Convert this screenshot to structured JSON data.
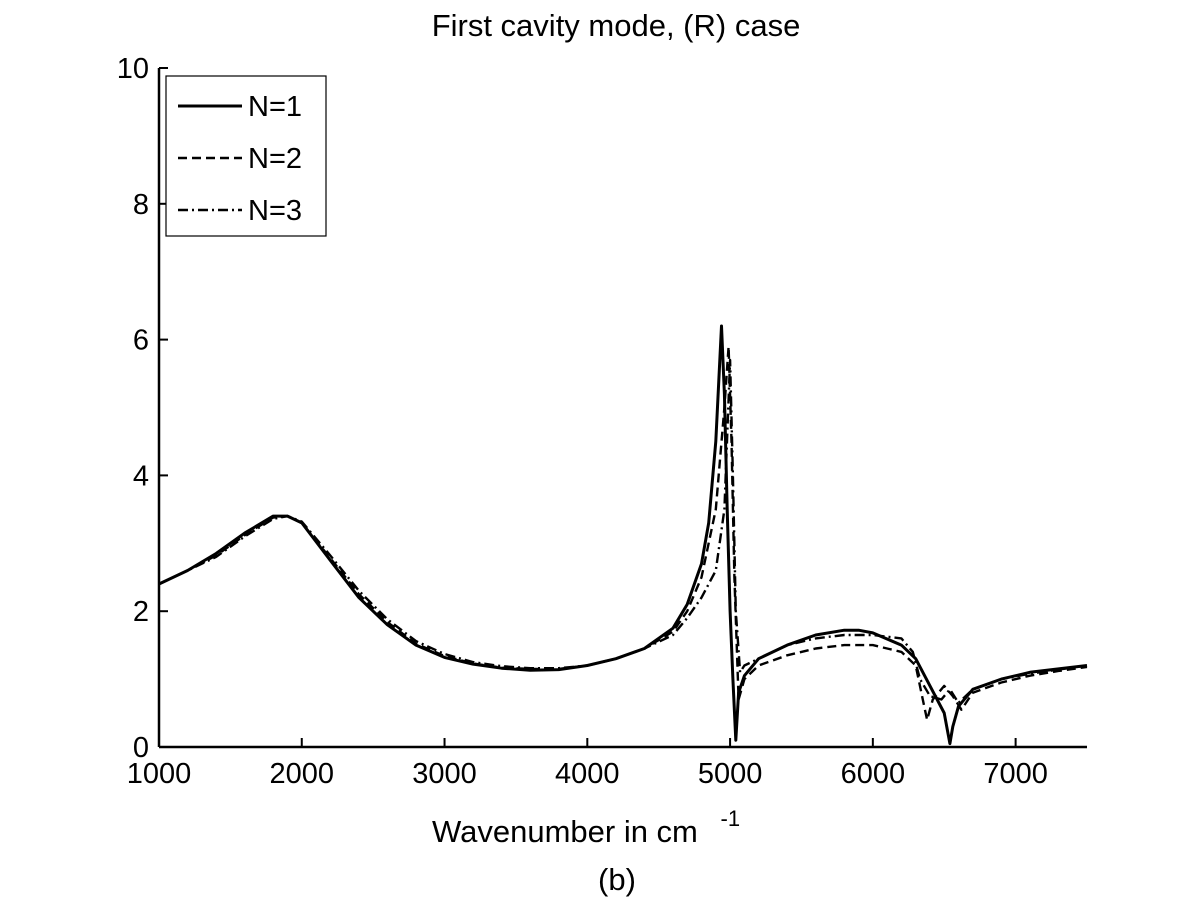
{
  "chart_data": {
    "type": "line",
    "title": "First cavity mode, (R) case",
    "xlabel": "Wavenumber in cm",
    "xlabel_superscript": "-1",
    "caption": "(b)",
    "xlim": [
      1000,
      7500
    ],
    "ylim": [
      0,
      10
    ],
    "xticks": [
      "1000",
      "2000",
      "3000",
      "4000",
      "5000",
      "6000",
      "7000"
    ],
    "yticks": [
      "0",
      "2",
      "4",
      "6",
      "8",
      "10"
    ],
    "grid": false,
    "legend_position": "top-left",
    "series": [
      {
        "name": "N=1",
        "style": "solid",
        "x": [
          1000,
          1200,
          1400,
          1600,
          1800,
          1900,
          2000,
          2200,
          2400,
          2600,
          2800,
          3000,
          3200,
          3400,
          3600,
          3800,
          4000,
          4200,
          4400,
          4600,
          4700,
          4800,
          4850,
          4900,
          4940,
          4960,
          4980,
          5000,
          5020,
          5040,
          5060,
          5100,
          5200,
          5400,
          5600,
          5800,
          5900,
          6000,
          6200,
          6300,
          6400,
          6500,
          6540,
          6560,
          6600,
          6700,
          6900,
          7100,
          7300,
          7500
        ],
        "y": [
          2.4,
          2.6,
          2.85,
          3.15,
          3.4,
          3.4,
          3.3,
          2.75,
          2.2,
          1.8,
          1.5,
          1.32,
          1.22,
          1.16,
          1.13,
          1.14,
          1.2,
          1.3,
          1.45,
          1.75,
          2.1,
          2.7,
          3.3,
          4.5,
          6.2,
          5.2,
          3.5,
          2.0,
          1.0,
          0.1,
          0.8,
          1.05,
          1.3,
          1.5,
          1.65,
          1.72,
          1.72,
          1.68,
          1.5,
          1.3,
          0.9,
          0.5,
          0.05,
          0.3,
          0.6,
          0.85,
          1.0,
          1.1,
          1.15,
          1.2
        ]
      },
      {
        "name": "N=2",
        "style": "dashed",
        "x": [
          1000,
          1200,
          1400,
          1600,
          1800,
          1900,
          2000,
          2200,
          2400,
          2600,
          2800,
          3000,
          3200,
          3400,
          3600,
          3800,
          4000,
          4200,
          4400,
          4600,
          4700,
          4800,
          4900,
          4960,
          4990,
          5010,
          5030,
          5060,
          5100,
          5200,
          5400,
          5600,
          5800,
          6000,
          6200,
          6300,
          6360,
          6380,
          6420,
          6500,
          6560,
          6620,
          6700,
          6900,
          7100,
          7300,
          7500
        ],
        "y": [
          2.4,
          2.6,
          2.82,
          3.12,
          3.38,
          3.4,
          3.3,
          2.78,
          2.25,
          1.84,
          1.52,
          1.34,
          1.23,
          1.17,
          1.15,
          1.15,
          1.2,
          1.3,
          1.45,
          1.7,
          2.0,
          2.5,
          3.5,
          5.0,
          5.9,
          4.5,
          2.5,
          0.7,
          1.0,
          1.2,
          1.35,
          1.45,
          1.5,
          1.5,
          1.4,
          1.2,
          0.6,
          0.4,
          0.7,
          0.9,
          0.75,
          0.55,
          0.8,
          0.95,
          1.05,
          1.12,
          1.18
        ]
      },
      {
        "name": "N=3",
        "style": "dashdot",
        "x": [
          1000,
          1200,
          1400,
          1600,
          1800,
          1900,
          2000,
          2200,
          2400,
          2600,
          2800,
          3000,
          3200,
          3400,
          3600,
          3800,
          4000,
          4200,
          4400,
          4600,
          4700,
          4800,
          4900,
          4960,
          5000,
          5020,
          5040,
          5070,
          5100,
          5200,
          5400,
          5600,
          5800,
          6000,
          6200,
          6280,
          6330,
          6400,
          6480,
          6540,
          6600,
          6700,
          6900,
          7100,
          7300,
          7500
        ],
        "y": [
          2.4,
          2.6,
          2.8,
          3.1,
          3.36,
          3.4,
          3.32,
          2.82,
          2.3,
          1.88,
          1.56,
          1.37,
          1.25,
          1.19,
          1.16,
          1.16,
          1.2,
          1.3,
          1.45,
          1.65,
          1.9,
          2.2,
          2.6,
          3.5,
          5.7,
          4.0,
          2.0,
          1.1,
          1.2,
          1.3,
          1.5,
          1.6,
          1.65,
          1.65,
          1.6,
          1.4,
          1.0,
          0.75,
          0.7,
          0.85,
          0.65,
          0.85,
          1.0,
          1.08,
          1.14,
          1.2
        ]
      }
    ]
  }
}
